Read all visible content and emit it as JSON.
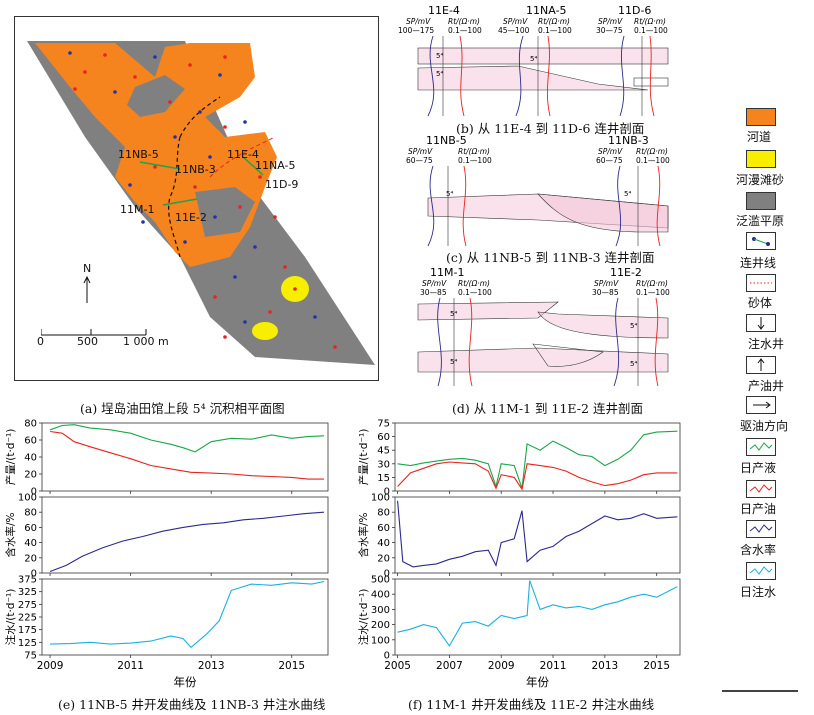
{
  "panel_a": {
    "caption": "(a) 埕岛油田馆上段 5⁴ 沉积相平面图",
    "wells": [
      "11NB-5",
      "11NB-3",
      "11E-4",
      "11NA-5",
      "11D-9",
      "11M-1",
      "11E-2"
    ],
    "north": "N",
    "scale_labels": [
      "0",
      "500",
      "1 000 m"
    ]
  },
  "panel_b": {
    "caption": "(b) 从 11E-4 到 11D-6 连井剖面",
    "wells": [
      "11E-4",
      "11NA-5",
      "11D-6"
    ],
    "sp_ranges": [
      "100—175",
      "45—100",
      "30—75"
    ],
    "rt_range": "0.1—100",
    "sp_label": "SP/mV",
    "rt_label": "Rt/(Ω·m)",
    "layer": "5⁴"
  },
  "panel_c": {
    "caption": "(c) 从 11NB-5 到 11NB-3 连井剖面",
    "wells": [
      "11NB-5",
      "11NB-3"
    ],
    "sp_ranges": [
      "60—75",
      "60—75"
    ],
    "rt_range": "0.1—100",
    "sp_label": "SP/mV",
    "rt_label": "Rt/(Ω·m)",
    "layer": "5⁴"
  },
  "panel_d": {
    "caption": "(d) 从 11M-1 到 11E-2 连井剖面",
    "wells": [
      "11M-1",
      "11E-2"
    ],
    "sp_ranges": [
      "30—85",
      "30—85"
    ],
    "rt_range": "0.1—100",
    "sp_label": "SP/mV",
    "rt_label": "Rt/(Ω·m)",
    "layer": "5⁴"
  },
  "legend": [
    {
      "label": "河道",
      "swatch": "#f5841f"
    },
    {
      "label": "河漫滩砂",
      "swatch": "#f7ee00"
    },
    {
      "label": "泛滥平原",
      "swatch": "#808080"
    },
    {
      "label": "连井线",
      "swatch": "well-link-icon"
    },
    {
      "label": "砂体",
      "swatch": "sand-dot-icon"
    },
    {
      "label": "注水井",
      "swatch": "arrow-down-icon"
    },
    {
      "label": "产油井",
      "swatch": "arrow-up-icon"
    },
    {
      "label": "驱油方向",
      "swatch": "arrow-right-icon"
    },
    {
      "label": "日产液",
      "swatch": "#1aa64a"
    },
    {
      "label": "日产油",
      "swatch": "#e8231e"
    },
    {
      "label": "含水率",
      "swatch": "#2b2b8c"
    },
    {
      "label": "日注水",
      "swatch": "#1ab0e0"
    }
  ],
  "colors": {
    "channel": "#f5841f",
    "floodplain": "#808080",
    "overbank": "#f7ee00",
    "liquid": "#1aa64a",
    "oil": "#e8231e",
    "watercut": "#2b2b8c",
    "injection": "#1ab0e0",
    "sand": "#f4c6d8"
  },
  "panel_e": {
    "caption": "(e) 11NB-5 井开发曲线及 11NB-3 井注水曲线",
    "xlabel": "年份",
    "y1label": "产量/(t·d⁻¹)",
    "y2label": "含水率/%",
    "y3label": "注水/(t·d⁻¹)",
    "x_ticks": [
      "2009",
      "2011",
      "2013",
      "2015"
    ],
    "y1_ticks": [
      "0",
      "20",
      "40",
      "60",
      "80"
    ],
    "y2_ticks": [
      "0",
      "20",
      "40",
      "60",
      "80",
      "100"
    ],
    "y3_ticks": [
      "75",
      "125",
      "175",
      "225",
      "275",
      "325",
      "375"
    ]
  },
  "panel_f": {
    "caption": "(f) 11M-1 井开发曲线及 11E-2 井注水曲线",
    "xlabel": "年份",
    "y1label": "产量/(t·d⁻¹)",
    "y2label": "含水率/%",
    "y3label": "注水/(t·d⁻¹)",
    "x_ticks": [
      "2005",
      "2007",
      "2009",
      "2011",
      "2013",
      "2015"
    ],
    "y1_ticks": [
      "0",
      "15",
      "30",
      "45",
      "60",
      "75"
    ],
    "y2_ticks": [
      "0",
      "20",
      "40",
      "60",
      "80",
      "100"
    ],
    "y3_ticks": [
      "0",
      "100",
      "200",
      "300",
      "400",
      "500"
    ]
  },
  "chart_data": [
    {
      "type": "line",
      "panel": "e-top",
      "ylabel": "产量/(t·d⁻¹)",
      "xlabel": "",
      "xlim": [
        2008.8,
        2015.9
      ],
      "ylim": [
        0,
        80
      ],
      "series": [
        {
          "name": "日产液",
          "x": [
            2009,
            2009.3,
            2009.6,
            2010,
            2010.5,
            2011,
            2011.5,
            2012,
            2012.3,
            2012.6,
            2013,
            2013.5,
            2014,
            2014.5,
            2015,
            2015.4,
            2015.8
          ],
          "values": [
            72,
            77,
            78,
            74,
            72,
            68,
            60,
            55,
            51,
            46,
            58,
            62,
            61,
            66,
            62,
            64,
            65
          ]
        },
        {
          "name": "日产油",
          "x": [
            2009,
            2009.3,
            2009.6,
            2010,
            2010.5,
            2011,
            2011.5,
            2012,
            2012.5,
            2013,
            2013.5,
            2014,
            2014.5,
            2015,
            2015.4,
            2015.8
          ],
          "values": [
            70,
            68,
            58,
            52,
            45,
            38,
            30,
            26,
            22,
            21,
            20,
            18,
            17,
            16,
            14,
            14
          ]
        }
      ]
    },
    {
      "type": "line",
      "panel": "e-middle",
      "ylabel": "含水率/%",
      "xlim": [
        2008.8,
        2015.9
      ],
      "ylim": [
        0,
        100
      ],
      "series": [
        {
          "name": "含水率",
          "x": [
            2009,
            2009.4,
            2009.8,
            2010.3,
            2010.8,
            2011.3,
            2011.8,
            2012.3,
            2012.8,
            2013.3,
            2013.8,
            2014.3,
            2014.8,
            2015.3,
            2015.8
          ],
          "values": [
            2,
            10,
            22,
            33,
            42,
            48,
            55,
            60,
            64,
            66,
            70,
            72,
            75,
            78,
            80
          ]
        }
      ]
    },
    {
      "type": "line",
      "panel": "e-bottom",
      "ylabel": "注水/(t·d⁻¹)",
      "xlabel": "年份",
      "xlim": [
        2008.8,
        2015.9
      ],
      "ylim": [
        75,
        375
      ],
      "series": [
        {
          "name": "日注水",
          "x": [
            2009,
            2009.5,
            2010,
            2010.5,
            2011,
            2011.5,
            2012,
            2012.3,
            2012.5,
            2012.9,
            2013.2,
            2013.5,
            2014,
            2014.5,
            2015,
            2015.5,
            2015.8
          ],
          "values": [
            118,
            120,
            125,
            118,
            122,
            130,
            150,
            140,
            105,
            160,
            210,
            330,
            355,
            350,
            360,
            355,
            365
          ]
        }
      ]
    },
    {
      "type": "line",
      "panel": "f-top",
      "ylabel": "产量/(t·d⁻¹)",
      "xlim": [
        2004.9,
        2015.9
      ],
      "ylim": [
        0,
        75
      ],
      "series": [
        {
          "name": "日产液",
          "x": [
            2005,
            2005.5,
            2006,
            2006.5,
            2007,
            2007.5,
            2008,
            2008.5,
            2008.8,
            2009,
            2009.5,
            2009.8,
            2010,
            2010.5,
            2011,
            2011.5,
            2012,
            2012.5,
            2013,
            2013.5,
            2014,
            2014.5,
            2015,
            2015.8
          ],
          "values": [
            30,
            28,
            31,
            33,
            35,
            36,
            34,
            30,
            5,
            30,
            28,
            3,
            52,
            45,
            55,
            48,
            40,
            38,
            28,
            35,
            45,
            62,
            65,
            66
          ]
        },
        {
          "name": "日产油",
          "x": [
            2005,
            2005.5,
            2006,
            2006.5,
            2007,
            2007.5,
            2008,
            2008.5,
            2008.8,
            2009,
            2009.5,
            2009.8,
            2010,
            2010.5,
            2011,
            2011.5,
            2012,
            2012.5,
            2013,
            2013.5,
            2014,
            2014.5,
            2015,
            2015.8
          ],
          "values": [
            5,
            20,
            25,
            30,
            32,
            31,
            30,
            22,
            3,
            18,
            15,
            2,
            30,
            28,
            26,
            22,
            15,
            10,
            6,
            8,
            12,
            18,
            20,
            20
          ]
        }
      ]
    },
    {
      "type": "line",
      "panel": "f-middle",
      "ylabel": "含水率/%",
      "xlim": [
        2004.9,
        2015.9
      ],
      "ylim": [
        0,
        100
      ],
      "series": [
        {
          "name": "含水率",
          "x": [
            2005,
            2005.2,
            2005.6,
            2006,
            2006.5,
            2007,
            2007.5,
            2008,
            2008.5,
            2008.8,
            2009,
            2009.5,
            2009.8,
            2010,
            2010.5,
            2011,
            2011.5,
            2012,
            2012.5,
            2013,
            2013.5,
            2014,
            2014.5,
            2015,
            2015.8
          ],
          "values": [
            95,
            15,
            8,
            10,
            12,
            18,
            22,
            28,
            30,
            10,
            40,
            45,
            82,
            15,
            30,
            35,
            48,
            55,
            65,
            75,
            70,
            72,
            78,
            72,
            74
          ]
        }
      ]
    },
    {
      "type": "line",
      "panel": "f-bottom",
      "ylabel": "注水/(t·d⁻¹)",
      "xlabel": "年份",
      "xlim": [
        2004.9,
        2015.9
      ],
      "ylim": [
        0,
        500
      ],
      "series": [
        {
          "name": "日注水",
          "x": [
            2005,
            2005.5,
            2006,
            2006.5,
            2007,
            2007.5,
            2008,
            2008.5,
            2009,
            2009.5,
            2010,
            2010.1,
            2010.5,
            2011,
            2011.5,
            2012,
            2012.5,
            2013,
            2013.5,
            2014,
            2014.5,
            2015,
            2015.8
          ],
          "values": [
            150,
            170,
            200,
            180,
            60,
            210,
            220,
            190,
            260,
            240,
            260,
            490,
            300,
            330,
            310,
            320,
            300,
            330,
            350,
            380,
            400,
            380,
            450
          ]
        }
      ]
    }
  ]
}
